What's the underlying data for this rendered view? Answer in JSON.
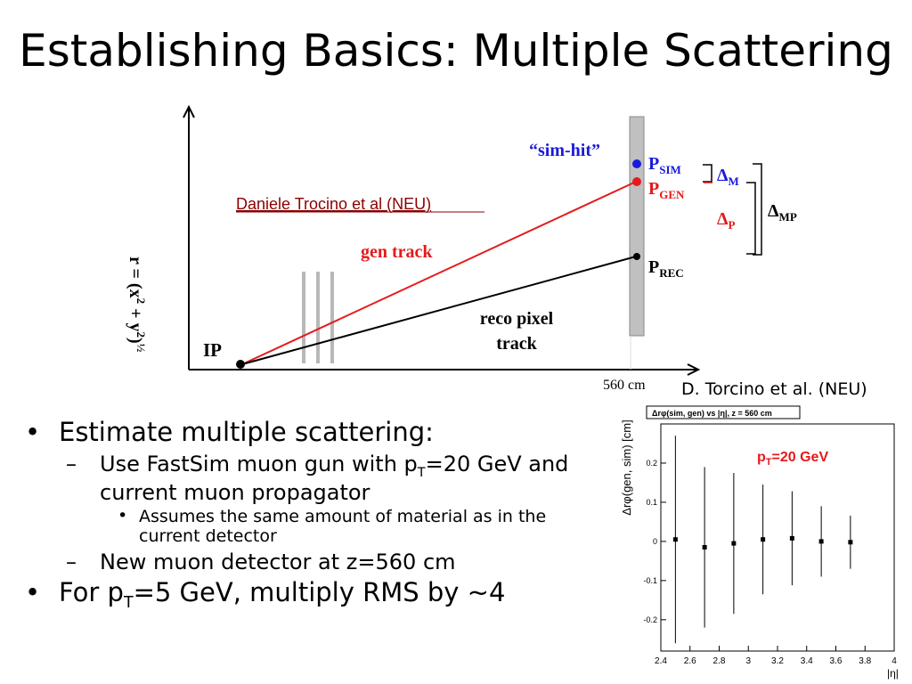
{
  "slide": {
    "title": "Establishing Basics: Multiple Scattering"
  },
  "diagram": {
    "y_axis_label_main": "r = (x",
    "y_axis_label_rest": " + y",
    "y_axis_label_end": ")",
    "y_axis_sup2": "2",
    "y_axis_half": "½",
    "x_axis_tick": "560 cm",
    "ip_label": "IP",
    "gen_track_label": "gen track",
    "reco_track_label_1": "reco pixel",
    "reco_track_label_2": "track",
    "sim_hit_label": "“sim-hit”",
    "attribution_link": "Daniele Trocino et al (NEU)",
    "p_sim_main": "P",
    "p_sim_sub": "SIM",
    "p_gen_main": "P",
    "p_gen_sub": "GEN",
    "p_rec_main": "P",
    "p_rec_sub": "REC",
    "delta_m": "Δ",
    "delta_m_sub": "M",
    "delta_p": "Δ",
    "delta_p_sub": "P",
    "delta_mp": "Δ",
    "delta_mp_sub": "MP",
    "colors": {
      "gen": "#e41a1c",
      "sim": "#1a1adb",
      "reco": "#000000",
      "detector": "#c0c0c0",
      "link": "#8b0000"
    }
  },
  "credit": "D. Torcino et al. (NEU)",
  "bullets": {
    "b1": "Estimate multiple scattering:",
    "b1_1_pre": "Use FastSim muon gun with p",
    "b1_1_sub": "T",
    "b1_1_post": "=20 GeV and current muon propagator",
    "b1_1_1": "Assumes the same amount of material as in the current detector",
    "b1_2": "New muon detector at z=560 cm",
    "b2_pre": "For p",
    "b2_sub": "T",
    "b2_post": "=5 GeV, multiply RMS by ~4"
  },
  "chart_data": {
    "type": "scatter",
    "title": "Δrφ(sim, gen) vs |η|, z = 560 cm",
    "xlabel": "|η|",
    "ylabel": "Δrφ(gen, sim) [cm]",
    "annotation_pre": "p",
    "annotation_sub": "T",
    "annotation_post": "=20 GeV",
    "xlim": [
      2.4,
      4.0
    ],
    "ylim": [
      -0.28,
      0.3
    ],
    "x_ticks": [
      "2.4",
      "2.6",
      "2.8",
      "3",
      "3.2",
      "3.4",
      "3.6",
      "3.8",
      "4"
    ],
    "y_ticks": [
      "0.2",
      "0.1",
      "0",
      "-0.1",
      "-0.2"
    ],
    "y_tick_values": [
      0.2,
      0.1,
      0,
      -0.1,
      -0.2
    ],
    "points": [
      {
        "x": 2.5,
        "y": 0.005,
        "err": 0.265
      },
      {
        "x": 2.7,
        "y": -0.015,
        "err": 0.205
      },
      {
        "x": 2.9,
        "y": -0.005,
        "err": 0.18
      },
      {
        "x": 3.1,
        "y": 0.005,
        "err": 0.14
      },
      {
        "x": 3.3,
        "y": 0.008,
        "err": 0.12
      },
      {
        "x": 3.5,
        "y": 0.0,
        "err": 0.09
      },
      {
        "x": 3.7,
        "y": -0.002,
        "err": 0.068
      }
    ]
  }
}
